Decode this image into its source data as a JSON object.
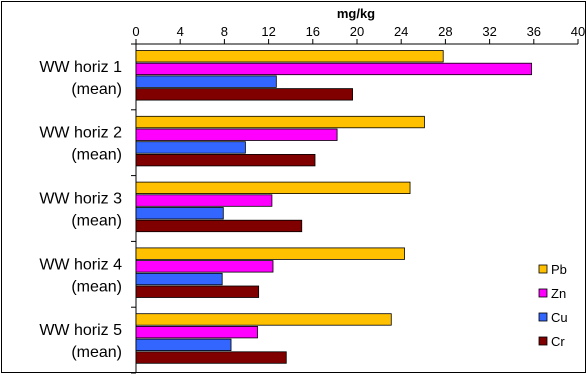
{
  "chart_data": {
    "type": "bar",
    "orientation": "horizontal",
    "title": "",
    "xlabel": "mg/kg",
    "ylabel": "",
    "xlim": [
      0,
      40
    ],
    "x_ticks": [
      "0",
      "4",
      "8",
      "12",
      "16",
      "20",
      "24",
      "28",
      "32",
      "36",
      "40"
    ],
    "categories": [
      [
        "WW horiz 1",
        "(mean)"
      ],
      [
        "WW horiz 2",
        "(mean)"
      ],
      [
        "WW horiz 3",
        "(mean)"
      ],
      [
        "WW horiz 4",
        "(mean)"
      ],
      [
        "WW horiz 5",
        "(mean)"
      ]
    ],
    "series": [
      {
        "name": "Pb",
        "color": "#FFC000",
        "values": [
          27.8,
          26.1,
          24.8,
          24.3,
          23.1
        ]
      },
      {
        "name": "Zn",
        "color": "#FF00FF",
        "values": [
          35.8,
          18.2,
          12.3,
          12.4,
          11.0
        ]
      },
      {
        "name": "Cu",
        "color": "#3366FF",
        "values": [
          12.7,
          9.9,
          7.9,
          7.8,
          8.6
        ]
      },
      {
        "name": "Cr",
        "color": "#800000",
        "values": [
          19.6,
          16.2,
          15.0,
          11.1,
          13.6
        ]
      }
    ],
    "grid": false,
    "legend_position": "right"
  }
}
